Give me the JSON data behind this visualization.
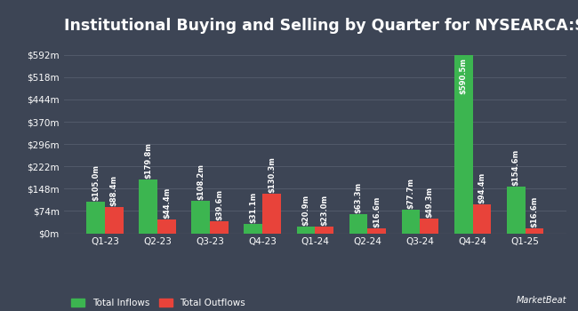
{
  "title": "Institutional Buying and Selling by Quarter for NYSEARCA:SPSB",
  "categories": [
    "Q1-23",
    "Q2-23",
    "Q3-23",
    "Q4-23",
    "Q1-24",
    "Q2-24",
    "Q3-24",
    "Q4-24",
    "Q1-25"
  ],
  "inflows": [
    105.0,
    179.8,
    108.2,
    31.1,
    20.9,
    63.3,
    77.7,
    590.5,
    154.6
  ],
  "outflows": [
    88.4,
    44.4,
    39.6,
    130.3,
    23.0,
    16.6,
    49.3,
    94.4,
    16.6
  ],
  "inflow_labels": [
    "$105.0m",
    "$179.8m",
    "$108.2m",
    "$31.1m",
    "$20.9m",
    "$63.3m",
    "$77.7m",
    "$590.5m",
    "$154.6m"
  ],
  "outflow_labels": [
    "$88.4m",
    "$44.4m",
    "$39.6m",
    "$130.3m",
    "$23.0m",
    "$16.6m",
    "$49.3m",
    "$94.4m",
    "$16.6m"
  ],
  "inflow_color": "#3cb550",
  "outflow_color": "#e8433a",
  "background_color": "#3d4555",
  "grid_color": "#555e6e",
  "text_color": "#ffffff",
  "yticks": [
    0,
    74,
    148,
    222,
    296,
    370,
    444,
    518,
    592
  ],
  "ytick_labels": [
    "$0m",
    "$74m",
    "$148m",
    "$222m",
    "$296m",
    "$370m",
    "$444m",
    "$518m",
    "$592m"
  ],
  "ylim": [
    0,
    640
  ],
  "bar_width": 0.35,
  "title_fontsize": 12.5,
  "label_fontsize": 6.0,
  "tick_fontsize": 7.5,
  "legend_fontsize": 7.5
}
